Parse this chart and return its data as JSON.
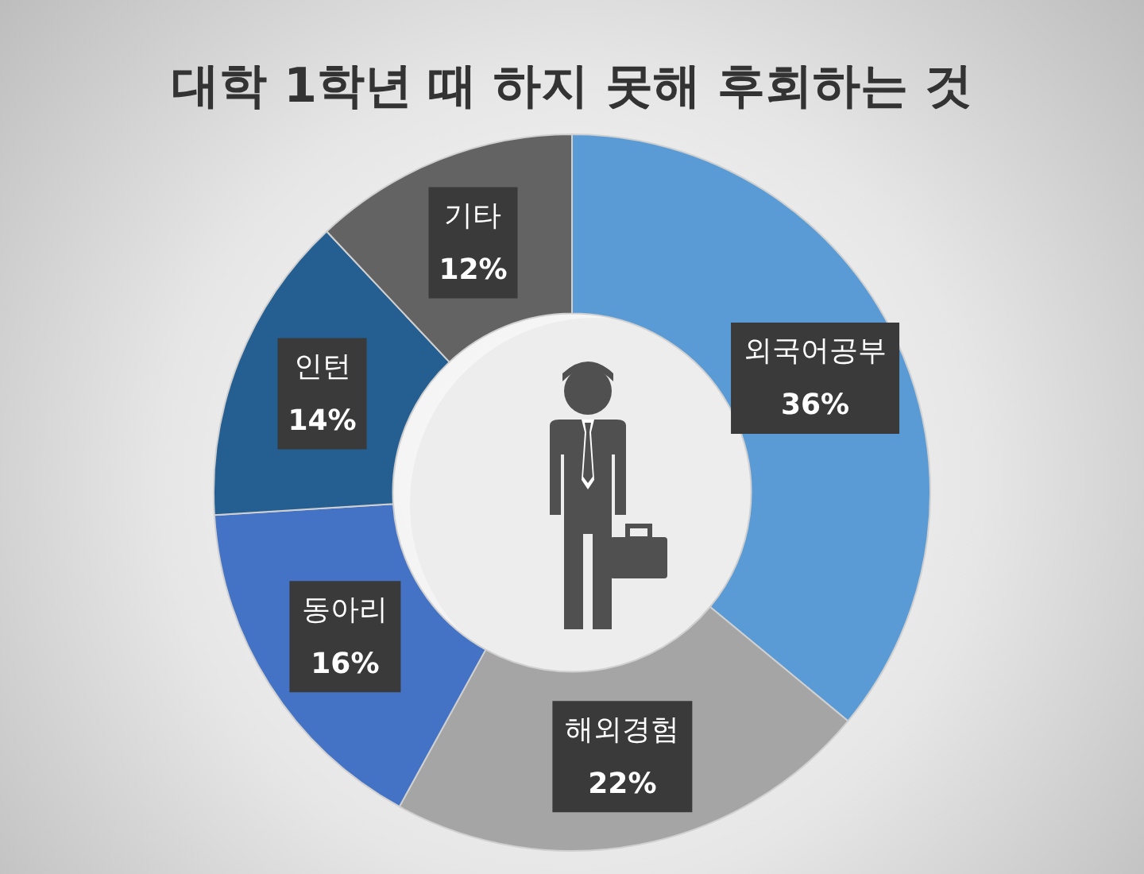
{
  "chart_data": {
    "type": "donut",
    "title": "대학 1학년 때 하지 못해 후회하는 것",
    "categories": [
      "외국어공부",
      "해외경험",
      "동아리",
      "인턴",
      "기타"
    ],
    "values": [
      36,
      22,
      16,
      14,
      12
    ],
    "value_labels": [
      "36%",
      "22%",
      "16%",
      "14%",
      "12%"
    ],
    "colors": [
      "#5b9bd5",
      "#a5a5a5",
      "#4472c4",
      "#255e91",
      "#636363"
    ],
    "legend": false
  }
}
